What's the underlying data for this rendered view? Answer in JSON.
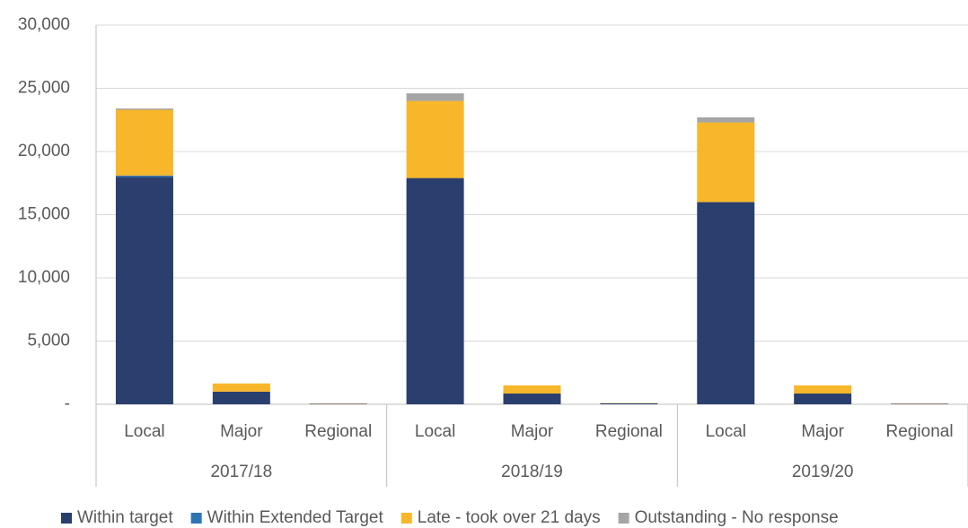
{
  "chart_data": {
    "type": "bar",
    "stacked": true,
    "categories": [
      "Local",
      "Major",
      "Regional",
      "Local",
      "Major",
      "Regional",
      "Local",
      "Major",
      "Regional"
    ],
    "category_groups": [
      "2017/18",
      "2018/19",
      "2019/20"
    ],
    "series": [
      {
        "name": "Within target",
        "color": "#2b3f6e",
        "values": [
          18000,
          1000,
          40,
          17900,
          850,
          80,
          16000,
          850,
          40
        ]
      },
      {
        "name": "Within Extended Target",
        "color": "#2e75b6",
        "values": [
          100,
          0,
          0,
          0,
          0,
          0,
          0,
          0,
          0
        ]
      },
      {
        "name": "Late - took over 21 days",
        "color": "#f8b62a",
        "values": [
          5200,
          650,
          20,
          6100,
          650,
          20,
          6300,
          650,
          20
        ]
      },
      {
        "name": "Outstanding - No response",
        "color": "#a5a5a5",
        "values": [
          100,
          0,
          0,
          600,
          0,
          0,
          400,
          0,
          0
        ]
      }
    ],
    "ylim": [
      0,
      30000
    ],
    "yticks": [
      {
        "value": 0,
        "label": "-"
      },
      {
        "value": 5000,
        "label": "5,000"
      },
      {
        "value": 10000,
        "label": "10,000"
      },
      {
        "value": 15000,
        "label": "15,000"
      },
      {
        "value": 20000,
        "label": "20,000"
      },
      {
        "value": 25000,
        "label": "25,000"
      },
      {
        "value": 30000,
        "label": "30,000"
      }
    ],
    "grid": true,
    "legend": "bottom"
  }
}
